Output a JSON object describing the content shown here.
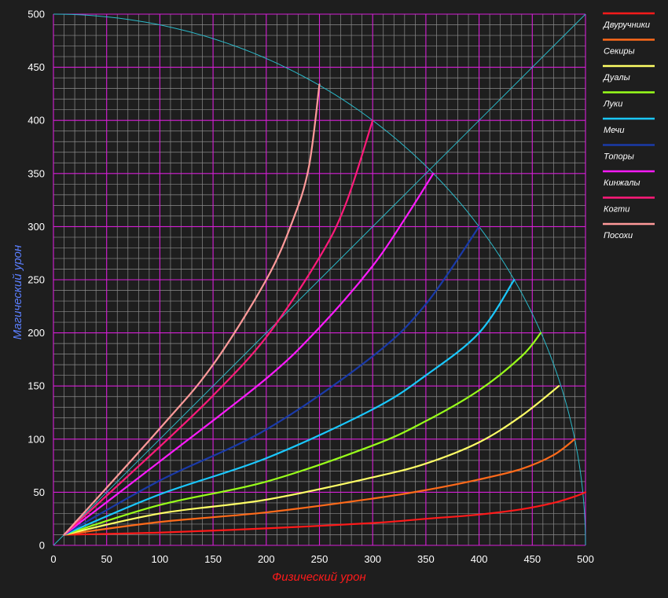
{
  "chart_data": {
    "type": "line",
    "xlabel": "Физический урон",
    "ylabel": "Магический урон",
    "xlim": [
      0,
      500
    ],
    "ylim": [
      0,
      500
    ],
    "x_ticks": [
      "0",
      "50",
      "100",
      "150",
      "200",
      "250",
      "300",
      "350",
      "400",
      "450",
      "500"
    ],
    "y_ticks": [
      "0",
      "50",
      "100",
      "150",
      "200",
      "250",
      "300",
      "350",
      "400",
      "450",
      "500"
    ],
    "grid": true,
    "legend_position": "right",
    "colors": {
      "background": "#1e1e1e",
      "plot_background": "#1e1e1e",
      "major_grid": "#d61fd6",
      "minor_grid": "#8c8c8c",
      "reference_curve": "#2ab8c8"
    },
    "reference": {
      "circle_radius": 500,
      "diagonal": [
        [
          0,
          0
        ],
        [
          500,
          500
        ]
      ]
    },
    "series": [
      {
        "name": "Двуручники",
        "color": "#ff1a1a",
        "x": [
          10,
          100,
          200,
          300,
          350,
          400,
          440,
          470,
          490,
          500
        ],
        "y": [
          10,
          12,
          16,
          21,
          25,
          29,
          34,
          40,
          46,
          50
        ]
      },
      {
        "name": "Секиры",
        "color": "#ff6a1a",
        "x": [
          10,
          100,
          200,
          300,
          350,
          400,
          440,
          470,
          490
        ],
        "y": [
          10,
          22,
          31,
          44,
          52,
          62,
          72,
          85,
          100
        ]
      },
      {
        "name": "Дуалы",
        "color": "#ffff66",
        "x": [
          10,
          100,
          200,
          300,
          350,
          400,
          440,
          475
        ],
        "y": [
          10,
          30,
          43,
          64,
          77,
          97,
          122,
          150
        ]
      },
      {
        "name": "Луки",
        "color": "#99ff1a",
        "x": [
          10,
          100,
          200,
          300,
          350,
          400,
          440,
          458
        ],
        "y": [
          10,
          38,
          60,
          94,
          117,
          146,
          178,
          200
        ]
      },
      {
        "name": "Мечи",
        "color": "#1ac8ff",
        "x": [
          10,
          100,
          200,
          300,
          350,
          400,
          433
        ],
        "y": [
          10,
          48,
          82,
          128,
          160,
          200,
          250
        ]
      },
      {
        "name": "Топоры",
        "color": "#1a3aa8",
        "x": [
          10,
          100,
          200,
          300,
          350,
          400
        ],
        "y": [
          10,
          61,
          109,
          178,
          227,
          300
        ]
      },
      {
        "name": "Кинжалы",
        "color": "#ff1aff",
        "x": [
          10,
          100,
          200,
          250,
          300,
          330,
          357
        ],
        "y": [
          10,
          79,
          157,
          205,
          263,
          307,
          350
        ]
      },
      {
        "name": "Когти",
        "color": "#ff1a7a",
        "x": [
          10,
          100,
          150,
          200,
          250,
          275,
          300
        ],
        "y": [
          10,
          93,
          141,
          196,
          271,
          322,
          400
        ]
      },
      {
        "name": "Посохи",
        "color": "#ff9a9a",
        "x": [
          10,
          100,
          150,
          200,
          225,
          240,
          250
        ],
        "y": [
          10,
          110,
          170,
          250,
          306,
          356,
          434
        ]
      }
    ]
  }
}
